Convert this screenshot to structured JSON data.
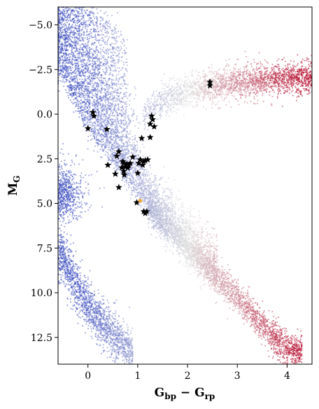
{
  "chart_data": {
    "type": "scatter",
    "title": "",
    "xlabel": {
      "main": "G",
      "sub1": "bp",
      "sep": " − ",
      "main2": "G",
      "sub2": "rp"
    },
    "ylabel": {
      "main": "M",
      "sub": "G"
    },
    "xlim": [
      -0.6,
      4.5
    ],
    "ylim": [
      14.0,
      -6.0
    ],
    "y_inverted": true,
    "x_ticks": [
      0,
      1,
      2,
      3,
      4
    ],
    "x_tick_labels": [
      "0",
      "1",
      "2",
      "3",
      "4"
    ],
    "y_ticks": [
      -5.0,
      -2.5,
      0.0,
      2.5,
      5.0,
      7.5,
      10.0,
      12.5
    ],
    "y_tick_labels": [
      "−5.0",
      "−2.5",
      "0.0",
      "2.5",
      "5.0",
      "7.5",
      "10.0",
      "12.5"
    ],
    "grid": false,
    "colormap": {
      "name": "coolwarm",
      "low": "#3b4cc0",
      "mid": "#dddddd",
      "high": "#b40426"
    },
    "background_density": {
      "description_series": "field stars (color-mapped by Gbp-Grp)",
      "main_sequence_ridge": [
        [
          -0.5,
          -2.0
        ],
        [
          0.0,
          1.0
        ],
        [
          0.5,
          2.8
        ],
        [
          1.0,
          4.6
        ],
        [
          1.5,
          6.2
        ],
        [
          2.0,
          7.6
        ],
        [
          2.5,
          9.0
        ],
        [
          3.0,
          10.2
        ],
        [
          3.5,
          11.8
        ],
        [
          4.0,
          13.2
        ]
      ],
      "giant_branch_ridge": [
        [
          1.0,
          0.3
        ],
        [
          1.5,
          -0.8
        ],
        [
          2.0,
          -1.3
        ],
        [
          2.5,
          -1.6
        ],
        [
          3.0,
          -1.8
        ],
        [
          3.5,
          -1.9
        ],
        [
          4.0,
          -2.0
        ],
        [
          4.5,
          -2.1
        ]
      ],
      "white_dwarf_ridge": [
        [
          -0.5,
          8.0
        ],
        [
          -0.2,
          9.8
        ],
        [
          0.2,
          11.4
        ],
        [
          0.6,
          12.6
        ],
        [
          0.9,
          13.6
        ]
      ],
      "blue_clump": [
        [
          -0.45,
          3.5
        ],
        [
          -0.2,
          4.5
        ],
        [
          -0.45,
          5.2
        ]
      ]
    },
    "series": [
      {
        "marker": "star",
        "color": "#000000",
        "points": [
          [
            0.12,
            0.1
          ],
          [
            0.1,
            -0.1
          ],
          [
            0.0,
            0.8
          ],
          [
            0.38,
            0.85
          ],
          [
            1.28,
            0.1
          ],
          [
            1.3,
            0.3
          ],
          [
            1.25,
            0.55
          ],
          [
            1.33,
            0.7
          ],
          [
            1.25,
            1.3
          ],
          [
            1.08,
            1.35
          ],
          [
            0.62,
            2.1
          ],
          [
            0.58,
            2.35
          ],
          [
            0.9,
            2.4
          ],
          [
            0.4,
            2.85
          ],
          [
            0.7,
            2.65
          ],
          [
            0.72,
            2.75
          ],
          [
            0.78,
            2.8
          ],
          [
            0.82,
            2.85
          ],
          [
            0.85,
            2.75
          ],
          [
            0.75,
            2.95
          ],
          [
            0.68,
            3.0
          ],
          [
            0.8,
            3.0
          ],
          [
            0.72,
            3.2
          ],
          [
            0.55,
            3.35
          ],
          [
            0.73,
            3.4
          ],
          [
            0.62,
            4.1
          ],
          [
            1.05,
            2.55
          ],
          [
            1.12,
            2.65
          ],
          [
            1.15,
            2.6
          ],
          [
            1.2,
            2.55
          ],
          [
            1.02,
            2.75
          ],
          [
            1.1,
            2.85
          ],
          [
            1.0,
            3.3
          ],
          [
            0.98,
            4.95
          ],
          [
            1.12,
            5.45
          ],
          [
            1.15,
            5.55
          ],
          [
            1.18,
            5.45
          ],
          [
            2.45,
            -1.6
          ],
          [
            2.45,
            -1.8
          ]
        ]
      },
      {
        "marker": "star",
        "color": "#f5a623",
        "points": [
          [
            1.05,
            4.85
          ]
        ]
      }
    ]
  }
}
